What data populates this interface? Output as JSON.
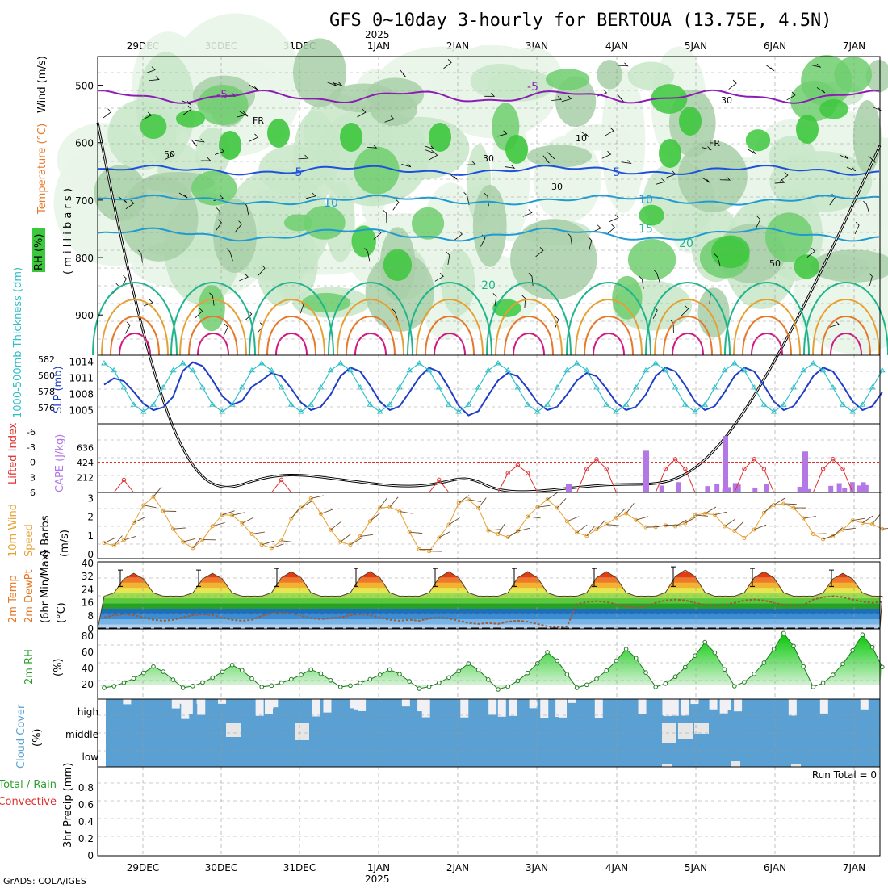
{
  "title": "GFS 0~10day 3-hourly for BERTOUA (13.75E, 4.5N)",
  "year_label": "2025",
  "footer": "GrADS: COLA/IGES",
  "dates": [
    "29DEC",
    "30DEC",
    "31DEC",
    "1JAN",
    "2JAN",
    "3JAN",
    "4JAN",
    "5JAN",
    "6JAN",
    "7JAN"
  ],
  "colors": {
    "rh_green": "#3cc83c",
    "temp_purple": "#8c1cb4",
    "temp_blue": "#1e50dc",
    "temp_cyan": "#1e9bd2",
    "temp_teal": "#1eb48c",
    "temp_orange": "#e6a032",
    "temp_darkorange": "#e67828",
    "temp_magenta": "#d2197d",
    "slp": "#1e3cc8",
    "thick": "#2ec0c8",
    "cape": "#b478e6",
    "li": "#e03030",
    "wind": "#e6a032",
    "rh2m": "#2ca02c",
    "cloud": "#5aa0d2",
    "precip_total": "#2ca02c",
    "precip_conv": "#e03030"
  },
  "panels": {
    "upper": {
      "ylabels": {
        "wind": "Wind (m/s)",
        "temp": "Temperature (°C)",
        "rh": "RH (%)",
        "pres": "( m i l l i b a r s )"
      },
      "levels": [
        "500",
        "600",
        "700",
        "800",
        "900"
      ],
      "contour_labels": [
        "-5",
        "-5",
        "5",
        "5",
        "10",
        "10",
        "15",
        "20",
        "20",
        "FR",
        "FR",
        "50",
        "50",
        "30",
        "30",
        "30",
        "10"
      ]
    },
    "slp": {
      "ylabel_left": "1000-500mb Thickness (dm)",
      "ylabel_right": "SLP (mb)",
      "left_ticks": [
        "582",
        "580",
        "578",
        "576"
      ],
      "right_ticks": [
        "1014",
        "1011",
        "1008",
        "1005"
      ]
    },
    "cape": {
      "ylabel_left": "Lifted Index",
      "ylabel_right": "CAPE (J/kg)",
      "li_ticks": [
        "-6",
        "-3",
        "0",
        "3",
        "6"
      ],
      "cape_ticks": [
        "636",
        "424",
        "212"
      ]
    },
    "wind10": {
      "ylabel_a": "10m Wind",
      "ylabel_b": "Speed",
      "ylabel_c": "& Barbs",
      "unit": "(m/s)",
      "ticks": [
        "3",
        "2",
        "1",
        "0"
      ]
    },
    "temp2m": {
      "ylabel_a": "2m Temp",
      "ylabel_b": "2m DewPt",
      "ylabel_c": "(6hr Min/Max)",
      "unit": "(°C)",
      "ticks": [
        "40",
        "32",
        "24",
        "16",
        "8",
        "0"
      ]
    },
    "rh2m": {
      "ylabel": "2m RH",
      "unit": "(%)",
      "ticks": [
        "80",
        "60",
        "40",
        "20"
      ]
    },
    "cloud": {
      "ylabel": "Cloud Cover",
      "unit": "(%)",
      "levels": [
        "high",
        "middle",
        "low"
      ]
    },
    "precip": {
      "ylabel_a": "Total / Rain",
      "ylabel_b": "Convective",
      "ylabel_c": "3hr Precip (mm)",
      "run_total": "Run Total = 0",
      "ticks": [
        "0.8",
        "0.6",
        "0.4",
        "0.2",
        "0"
      ]
    }
  },
  "chart_data": [
    {
      "type": "line",
      "title": "2m Temperature (°C)",
      "x_unit": "3-hour steps",
      "ylim": [
        0,
        40
      ],
      "series": [
        {
          "name": "daily max",
          "values": [
            34,
            34,
            35,
            35,
            35,
            35,
            35,
            36,
            35,
            34
          ]
        },
        {
          "name": "daily min",
          "values": [
            20,
            20,
            20,
            20,
            20,
            20,
            20,
            20,
            20,
            20
          ]
        },
        {
          "name": "dew point",
          "values": [
            7,
            7,
            8,
            7,
            5,
            3,
            15,
            16,
            16,
            18
          ]
        }
      ]
    },
    {
      "type": "line",
      "title": "Sea Level Pressure (mb)",
      "ylim": [
        1004,
        1014
      ],
      "series": [
        {
          "name": "SLP daily max",
          "values": [
            1011,
            1014,
            1012,
            1013,
            1013,
            1012,
            1012,
            1013,
            1013,
            1013
          ]
        },
        {
          "name": "SLP daily min",
          "values": [
            1005,
            1006,
            1005,
            1005,
            1004,
            1005,
            1005,
            1005,
            1005,
            1005
          ]
        }
      ]
    },
    {
      "type": "bar",
      "title": "CAPE (J/kg)",
      "categories": [
        "3JAN 06",
        "4JAN 09",
        "5JAN 09",
        "6JAN 09"
      ],
      "values": [
        120,
        590,
        800,
        580
      ]
    },
    {
      "type": "line",
      "title": "10m Wind Speed (m/s)",
      "ylim": [
        0,
        3
      ],
      "series": [
        {
          "name": "daily max",
          "values": [
            3.0,
            2.1,
            2.9,
            2.6,
            2.9,
            2.8,
            2.2,
            2.1,
            2.9,
            1.7
          ]
        },
        {
          "name": "daily min",
          "values": [
            0.3,
            0.4,
            0.3,
            0.5,
            0.2,
            0.8,
            1.0,
            1.4,
            1.0,
            1.0
          ]
        }
      ]
    },
    {
      "type": "line",
      "title": "2m RH (%)",
      "ylim": [
        10,
        90
      ],
      "series": [
        {
          "name": "daily peak",
          "values": [
            44,
            46,
            40,
            40,
            48,
            63,
            67,
            76,
            88,
            86
          ]
        },
        {
          "name": "daily min",
          "values": [
            16,
            16,
            17,
            17,
            15,
            14,
            16,
            17,
            18,
            17
          ]
        }
      ]
    },
    {
      "type": "bar",
      "title": "3hr Precip (mm)",
      "values": [
        0,
        0,
        0,
        0,
        0,
        0,
        0,
        0,
        0,
        0
      ]
    }
  ]
}
